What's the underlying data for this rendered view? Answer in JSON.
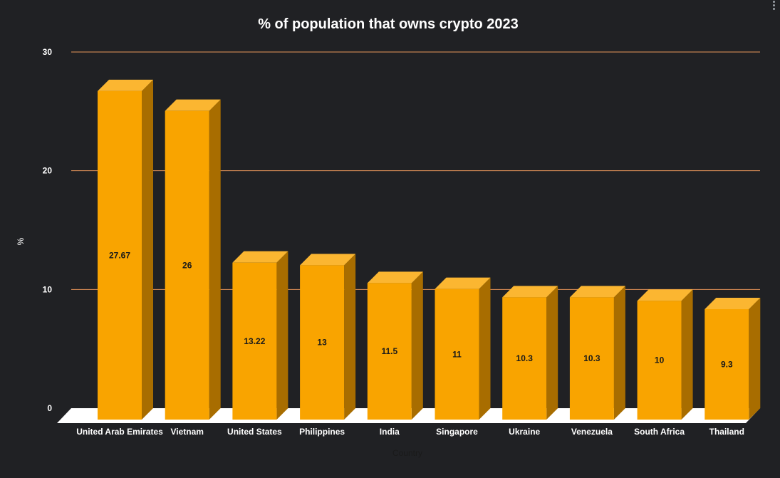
{
  "chart_data": {
    "type": "bar",
    "title": "% of population that owns crypto 2023",
    "xlabel": "Country",
    "ylabel": "%",
    "ylim": [
      0,
      30
    ],
    "yticks": [
      0,
      10,
      20,
      30
    ],
    "grid": true,
    "style": "3d",
    "categories": [
      "United Arab Emirates",
      "Vietnam",
      "United States",
      "Philippines",
      "India",
      "Singapore",
      "Ukraine",
      "Venezuela",
      "South Africa",
      "Thailand"
    ],
    "values": [
      27.67,
      26,
      13.22,
      13,
      11.5,
      11,
      10.3,
      10.3,
      10,
      9.3
    ],
    "value_labels": [
      "27.67",
      "26",
      "13.22",
      "13",
      "11.5",
      "11",
      "10.3",
      "10.3",
      "10",
      "9.3"
    ]
  },
  "colors": {
    "background": "#202124",
    "bar_front": "#f9a400",
    "bar_top": "#fbb631",
    "bar_side": "#a86d00",
    "gridline": "#e8965a",
    "floor": "#ffffff",
    "text": "#ffffff",
    "value_label": "#1a1a1a"
  },
  "menu_icon": "more-vert-icon"
}
